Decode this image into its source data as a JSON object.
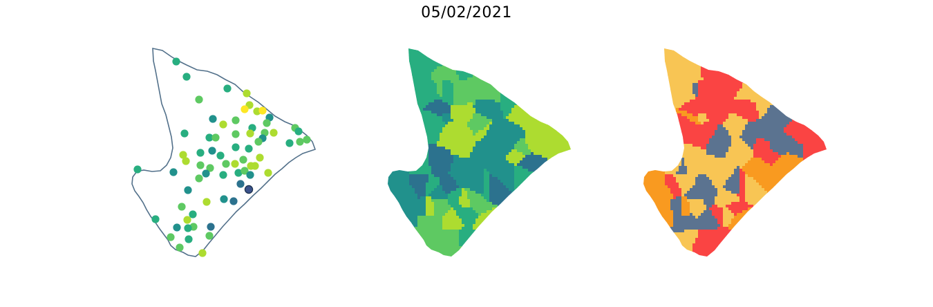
{
  "title": "05/02/2021",
  "colors": {
    "outline": "#52708a",
    "viridis": [
      "#440154",
      "#3b528b",
      "#2c728e",
      "#21918c",
      "#28ae80",
      "#5ec962",
      "#addc30",
      "#fde725"
    ],
    "classes": [
      "#f8c554",
      "#f99a20",
      "#fa4443",
      "#5b7390"
    ]
  }
}
